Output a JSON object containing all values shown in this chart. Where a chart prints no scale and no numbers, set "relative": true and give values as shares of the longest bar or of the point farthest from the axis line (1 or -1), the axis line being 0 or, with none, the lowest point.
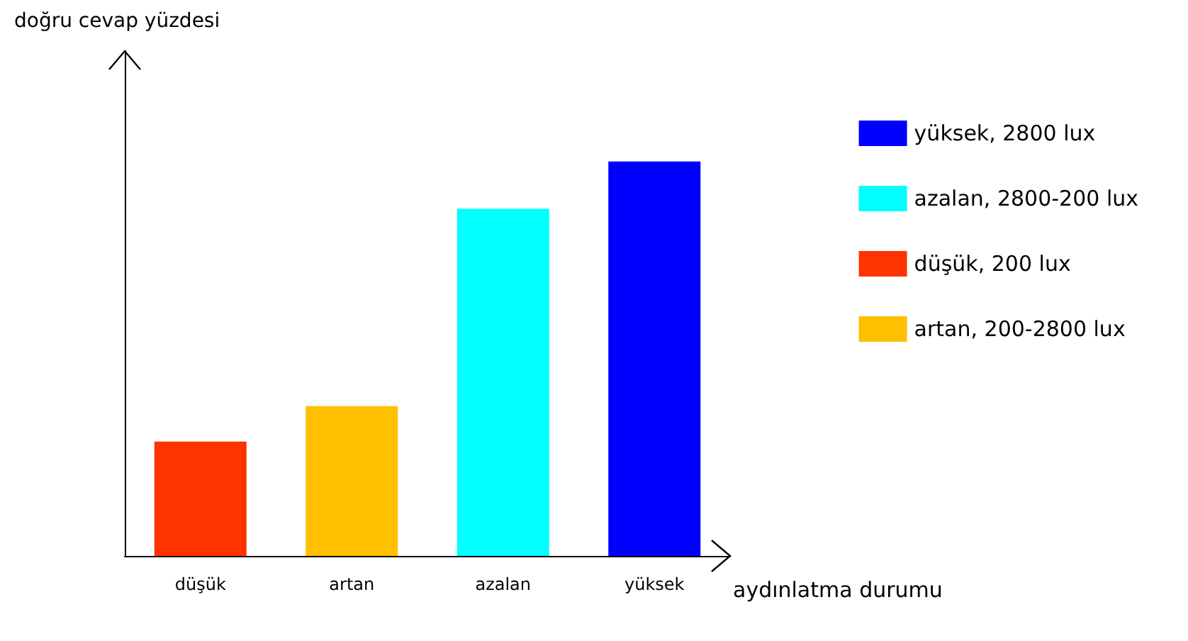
{
  "chart_data": {
    "type": "bar",
    "relative": true,
    "annotations": [
      "doğru cevap yüzdesi"
    ],
    "xlabel": "aydınlatma durumu",
    "categories": [
      "düşük",
      "artan",
      "azalan",
      "yüksek"
    ],
    "series": [
      {
        "name": "yüksek, 2800 lux",
        "color": "#0000ff",
        "values": [
          null,
          null,
          null,
          1
        ]
      },
      {
        "name": "azalan, 2800-200 lux",
        "color": "#00ffff",
        "values": [
          null,
          null,
          0.88,
          null
        ]
      },
      {
        "name": "düşük, 200 lux",
        "color": "#ff3300",
        "values": [
          0.29,
          null,
          null,
          null
        ]
      },
      {
        "name": "artan, 200-2800 lux",
        "color": "#ffc000",
        "values": [
          null,
          0.38,
          null,
          null
        ]
      }
    ],
    "legend": "right",
    "grid": false
  }
}
